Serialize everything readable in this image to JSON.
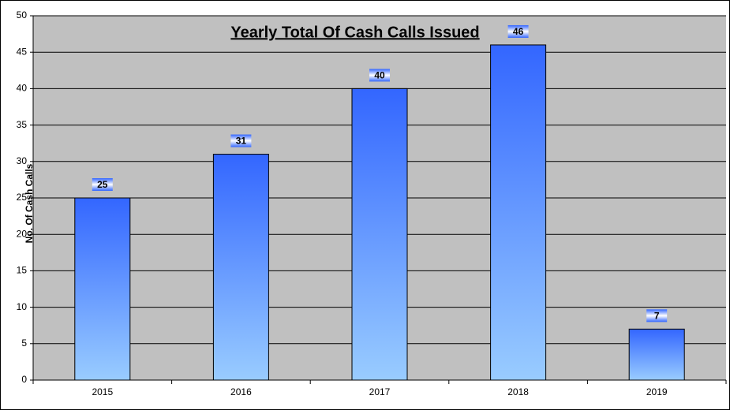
{
  "chart_data": {
    "type": "bar",
    "title": "Yearly Total Of Cash Calls Issued",
    "y_label": "No. Of Cash Calls",
    "categories": [
      "2015",
      "2016",
      "2017",
      "2018",
      "2019"
    ],
    "values": [
      25,
      31,
      40,
      46,
      7
    ],
    "color": "#3366ff",
    "ylim": [
      0,
      50
    ],
    "yticks": [
      0,
      5,
      10,
      15,
      20,
      25,
      30,
      35,
      40,
      45,
      50
    ],
    "grid": true
  }
}
